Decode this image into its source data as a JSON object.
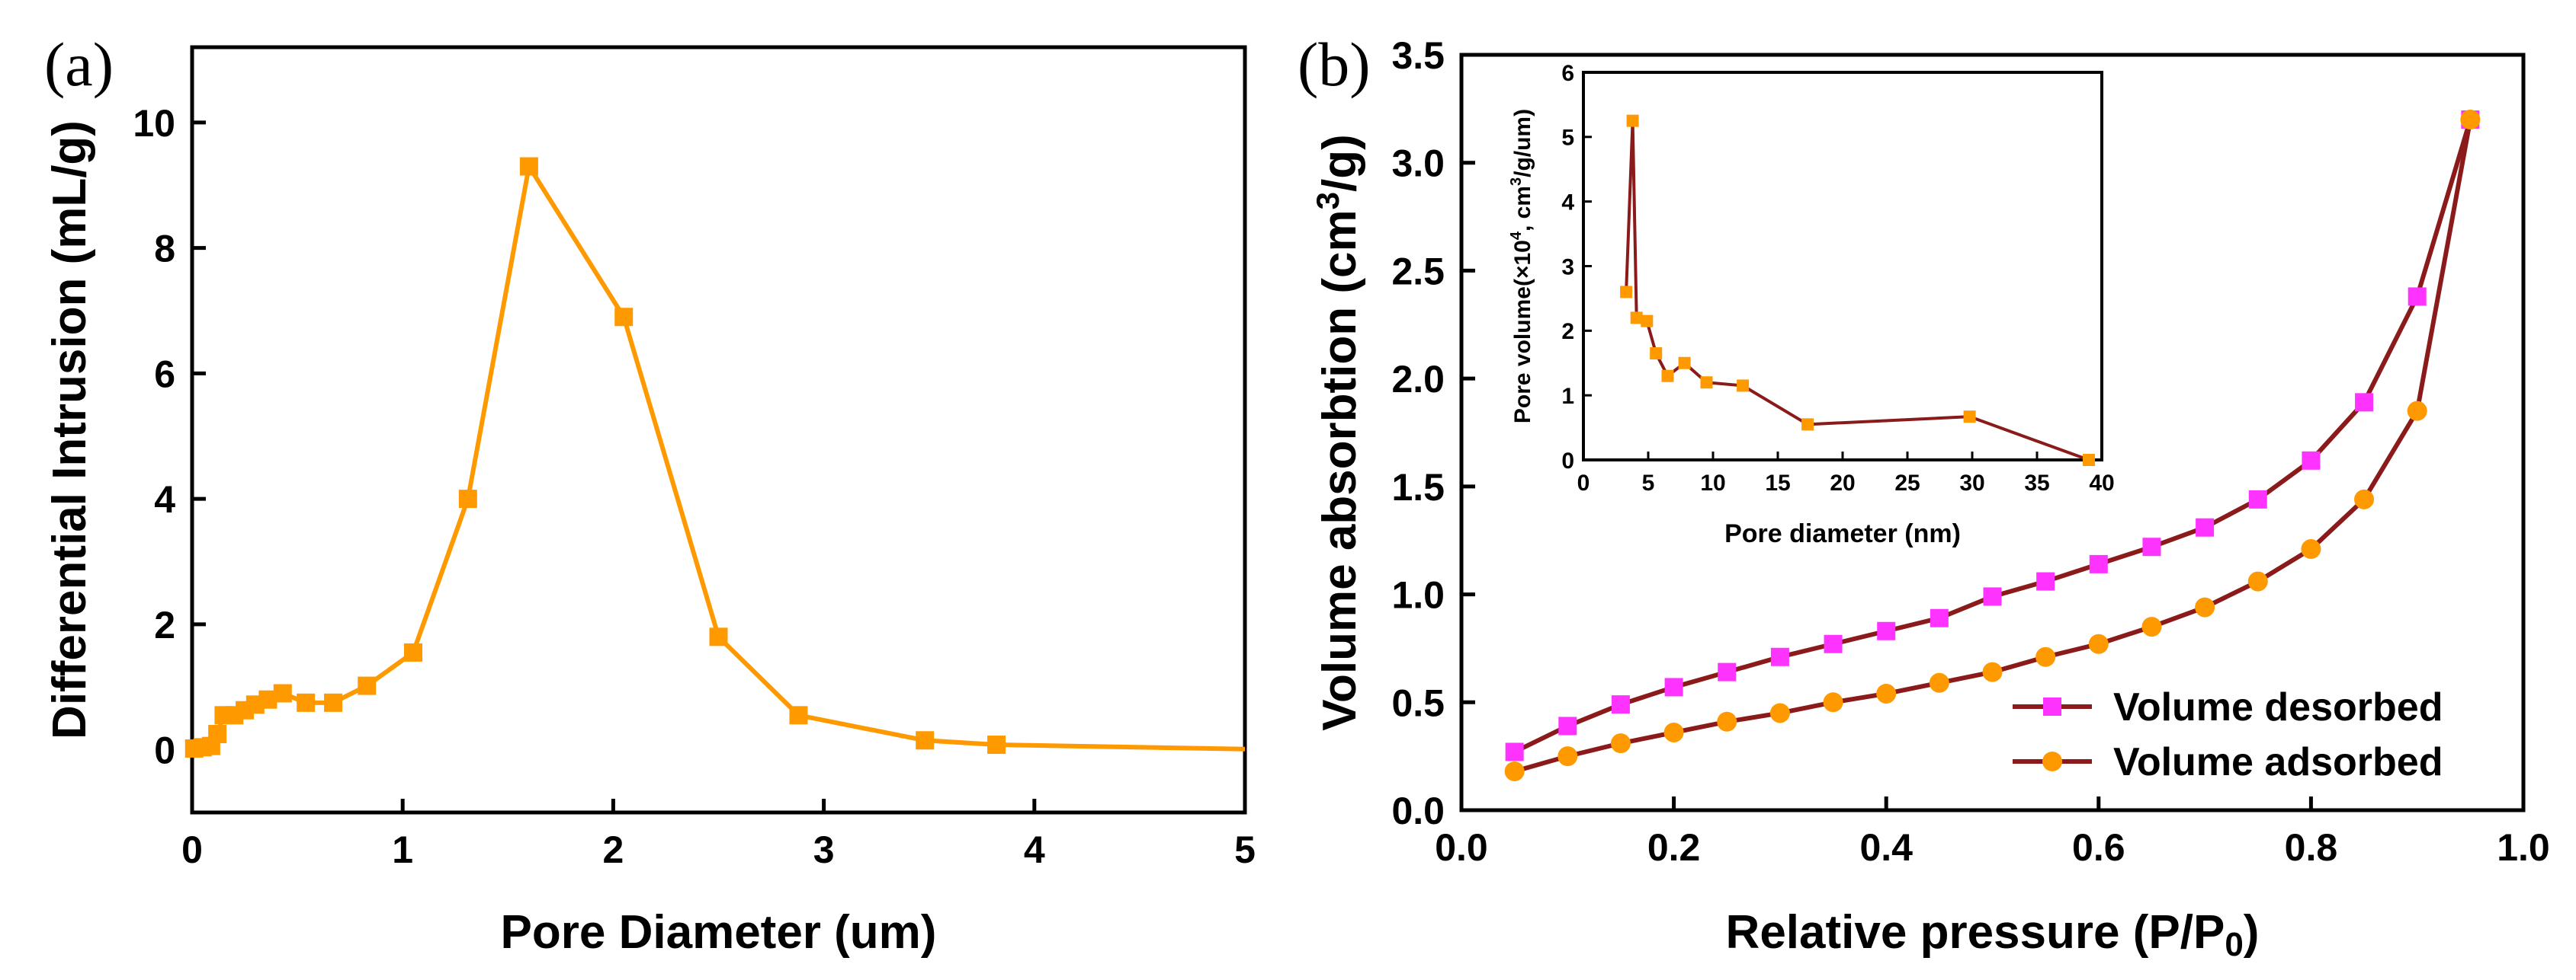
{
  "colors": {
    "orange": "#FF9900",
    "orange_fill": "#FF9900",
    "dark_red": "#8B1A1A",
    "magenta": "#FF33FF",
    "axis": "#000000",
    "background": "#FFFFFF"
  },
  "chart_data": [
    {
      "type": "line",
      "panel_label": "(a)",
      "xlabel": "Pore Diameter (um)",
      "ylabel": "Differential Intrusion (mL/g)",
      "xlim": [
        0,
        5
      ],
      "ylim": [
        -1,
        11.2
      ],
      "xticks": [
        0,
        1,
        2,
        3,
        4,
        5
      ],
      "xtick_labels": [
        "0",
        "1",
        "2",
        "3",
        "4",
        "5"
      ],
      "yticks": [
        0,
        2,
        4,
        6,
        8,
        10
      ],
      "ytick_labels": [
        "0",
        "2",
        "4",
        "6",
        "8",
        "10"
      ],
      "grid": false,
      "series": [
        {
          "marker": "square",
          "color": "#FF9900",
          "x": [
            0.01,
            0.05,
            0.09,
            0.12,
            0.15,
            0.2,
            0.25,
            0.3,
            0.36,
            0.43,
            0.54,
            0.67,
            0.83,
            1.05,
            1.31,
            1.6,
            2.05,
            2.5,
            2.88,
            3.48,
            3.82
          ],
          "y": [
            0.02,
            0.04,
            0.06,
            0.25,
            0.55,
            0.55,
            0.63,
            0.72,
            0.8,
            0.9,
            0.75,
            0.75,
            1.02,
            1.55,
            4.0,
            9.3,
            6.9,
            1.8,
            0.55,
            0.15,
            0.08
          ]
        },
        {
          "marker": "none",
          "color": "#FF9900",
          "x": [
            3.82,
            5.0
          ],
          "y": [
            0.08,
            0.01
          ]
        }
      ]
    },
    {
      "type": "line",
      "panel_label": "(b)",
      "xlabel": "Relative pressure (P/P0)",
      "xlabel_text": "Relative pressure (P/P",
      "xlabel_sub": "0",
      "xlabel_close": ")",
      "ylabel_pre": "Volume absorbtion (cm",
      "ylabel_sup": "3",
      "ylabel_post": "/g)",
      "xlim": [
        0,
        1.0
      ],
      "ylim": [
        0,
        3.5
      ],
      "xticks": [
        0.0,
        0.2,
        0.4,
        0.6,
        0.8,
        1.0
      ],
      "xtick_labels": [
        "0.0",
        "0.2",
        "0.4",
        "0.6",
        "0.8",
        "1.0"
      ],
      "yticks": [
        0.0,
        0.5,
        1.0,
        1.5,
        2.0,
        2.5,
        3.0,
        3.5
      ],
      "ytick_labels": [
        "0.0",
        "0.5",
        "1.0",
        "1.5",
        "2.0",
        "2.5",
        "3.0",
        "3.5"
      ],
      "grid": false,
      "legend_position": "bottom-right",
      "series": [
        {
          "name": "Volume desorbed",
          "marker": "square",
          "line_color": "#8B1A1A",
          "marker_color": "#FF33FF",
          "x": [
            0.05,
            0.1,
            0.15,
            0.2,
            0.25,
            0.3,
            0.35,
            0.4,
            0.45,
            0.5,
            0.55,
            0.6,
            0.65,
            0.7,
            0.75,
            0.8,
            0.85,
            0.9,
            0.95
          ],
          "y": [
            0.27,
            0.39,
            0.49,
            0.57,
            0.64,
            0.71,
            0.77,
            0.83,
            0.89,
            0.99,
            1.06,
            1.14,
            1.22,
            1.31,
            1.44,
            1.62,
            1.89,
            2.38,
            3.2
          ]
        },
        {
          "name": "Volume adsorbed",
          "marker": "circle",
          "line_color": "#8B1A1A",
          "marker_color": "#FF9900",
          "x": [
            0.05,
            0.1,
            0.15,
            0.2,
            0.25,
            0.3,
            0.35,
            0.4,
            0.45,
            0.5,
            0.55,
            0.6,
            0.65,
            0.7,
            0.75,
            0.8,
            0.85,
            0.9,
            0.95
          ],
          "y": [
            0.18,
            0.25,
            0.31,
            0.36,
            0.41,
            0.45,
            0.5,
            0.54,
            0.59,
            0.64,
            0.71,
            0.77,
            0.85,
            0.94,
            1.06,
            1.21,
            1.44,
            1.85,
            3.2
          ]
        }
      ],
      "inset": {
        "type": "line",
        "xlabel": "Pore diameter (nm)",
        "ylabel_pre": "Pore volume(×10",
        "ylabel_sup": "4",
        "ylabel_post": ", cm",
        "ylabel_sup2": "3",
        "ylabel_post2": "/g/um)",
        "xlim": [
          0,
          40
        ],
        "ylim": [
          0,
          6
        ],
        "xticks": [
          0,
          5,
          10,
          15,
          20,
          25,
          30,
          35,
          40
        ],
        "xtick_labels": [
          "0",
          "5",
          "10",
          "15",
          "20",
          "25",
          "30",
          "35",
          "40"
        ],
        "yticks": [
          0,
          1,
          2,
          3,
          4,
          5,
          6
        ],
        "ytick_labels": [
          "0",
          "1",
          "2",
          "3",
          "4",
          "5",
          "6"
        ],
        "series": [
          {
            "marker": "square",
            "line_color": "#8B1A1A",
            "marker_color": "#FF9900",
            "x": [
              3.3,
              3.8,
              4.1,
              4.9,
              5.6,
              6.5,
              7.8,
              9.5,
              12.3,
              17.3,
              29.8,
              39.0
            ],
            "y": [
              2.6,
              5.25,
              2.2,
              2.15,
              1.65,
              1.3,
              1.5,
              1.2,
              1.15,
              0.55,
              0.67,
              0.0
            ]
          }
        ]
      }
    }
  ]
}
